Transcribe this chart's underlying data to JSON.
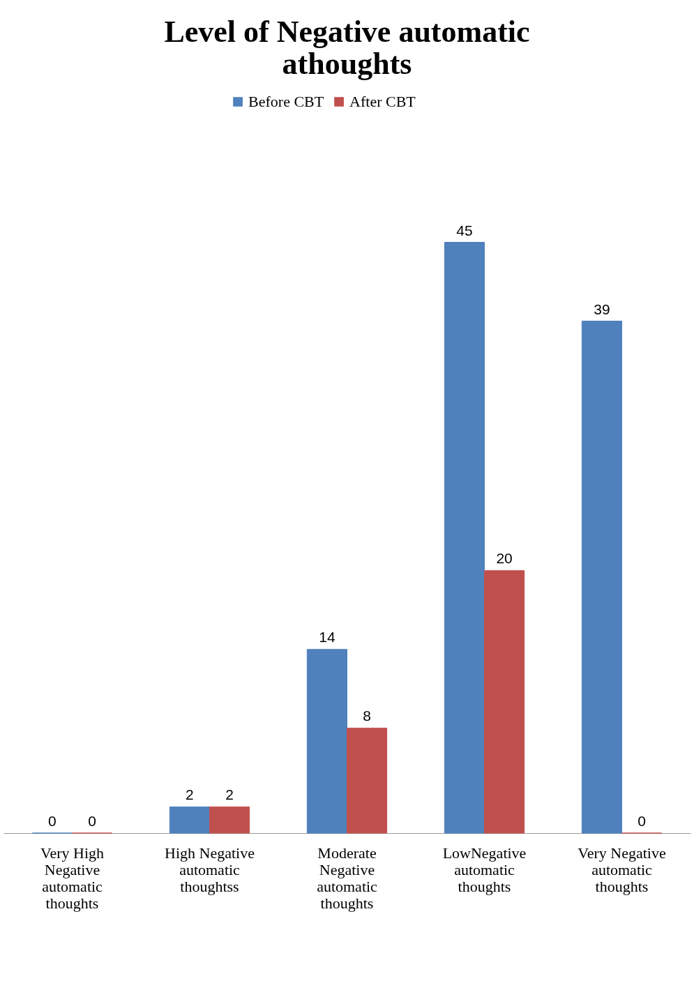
{
  "chart_data": {
    "type": "bar",
    "title": "Level of Negative automatic athoughts",
    "categories": [
      "Very High Negative automatic thoughts",
      "High Negative automatic thoughtss",
      "Moderate Negative automatic thoughts",
      "LowNegative automatic thoughts",
      "Very Negative automatic thoughts"
    ],
    "series": [
      {
        "name": "Before CBT",
        "color": "#4f81bd",
        "values": [
          0,
          2,
          14,
          45,
          39
        ]
      },
      {
        "name": "After CBT",
        "color": "#c0504d",
        "values": [
          0,
          2,
          8,
          20,
          0
        ]
      }
    ],
    "data_labels": true,
    "legend": "top",
    "grid": false
  }
}
